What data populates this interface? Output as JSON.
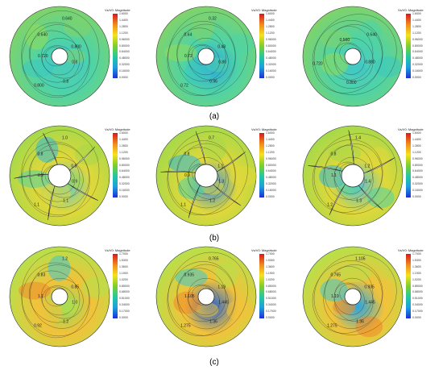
{
  "figure": {
    "row_labels": [
      "(a)",
      "(b)",
      "(c)"
    ],
    "colorbar_title": "Vs/V0: Magnitude",
    "colorbars": [
      [
        "1.6000",
        "1.4400",
        "1.2800",
        "1.1200",
        "0.96000",
        "0.80000",
        "0.64000",
        "0.48000",
        "0.32000",
        "0.16000",
        "0.0000"
      ],
      [
        "1.6000",
        "1.4400",
        "1.2800",
        "1.1200",
        "0.96000",
        "0.80000",
        "0.64000",
        "0.48000",
        "0.32000",
        "0.16000",
        "0.0000"
      ],
      [
        "1.6000",
        "1.4400",
        "1.2800",
        "1.1200",
        "0.96000",
        "0.80000",
        "0.64000",
        "0.48000",
        "0.32000",
        "0.16000",
        "0.0000"
      ],
      [
        "1.6000",
        "1.4400",
        "1.2800",
        "1.1200",
        "0.96000",
        "0.80000",
        "0.64000",
        "0.48000",
        "0.32000",
        "0.16000",
        "0.0000"
      ],
      [
        "1.6000",
        "1.4400",
        "1.2800",
        "1.1200",
        "0.96000",
        "0.80000",
        "0.64000",
        "0.48000",
        "0.32000",
        "0.16000",
        "0.0000"
      ],
      [
        "1.6000",
        "1.4400",
        "1.2800",
        "1.1200",
        "0.96000",
        "0.80000",
        "0.64000",
        "0.48000",
        "0.32000",
        "0.16000",
        "0.0000"
      ],
      [
        "1.7000",
        "1.5300",
        "1.3600",
        "1.1900",
        "1.0200",
        "0.85000",
        "0.68000",
        "0.51000",
        "0.34000",
        "0.17000",
        "0.0000"
      ],
      [
        "1.7000",
        "1.5300",
        "1.3600",
        "1.1900",
        "1.0200",
        "0.85000",
        "0.68000",
        "0.51000",
        "0.34000",
        "0.17000",
        "0.0000"
      ],
      [
        "1.7000",
        "1.5300",
        "1.3600",
        "1.1900",
        "1.0200",
        "0.85000",
        "0.68000",
        "0.51000",
        "0.34000",
        "0.17000",
        "0.0000"
      ]
    ],
    "contour_labels": [
      [
        "0.8",
        "0.8",
        "0.800",
        "0.720",
        "0.640",
        "0.640",
        "0.800"
      ],
      [
        "0.80",
        "0.96",
        "0.72",
        "0.72",
        "0.64",
        "0.32",
        "0.48"
      ],
      [
        "0.880",
        "0.800",
        "0.720",
        "0.560",
        "0.640"
      ],
      [
        "0.9",
        "1.1",
        "1.1",
        "0.9",
        "0.8",
        "1.0",
        "0.9"
      ],
      [
        "1.3",
        "1.2",
        "1.1",
        "0.9",
        "0.8",
        "0.7",
        "1.1"
      ],
      [
        "1.4",
        "1.3",
        "1.2",
        "1.1",
        "0.8",
        "1.4",
        "1.2"
      ],
      [
        "1.0",
        "1.2",
        "0.92",
        "1.1",
        "0.83",
        "1.2",
        "0.85"
      ],
      [
        "1.445",
        "1.36",
        "1.275",
        "1.105",
        "0.935",
        "0.765",
        "1.19"
      ],
      [
        "1.445",
        "1.36",
        "1.275",
        "1.19",
        "0.765",
        "1.105",
        "0.935"
      ]
    ]
  }
}
